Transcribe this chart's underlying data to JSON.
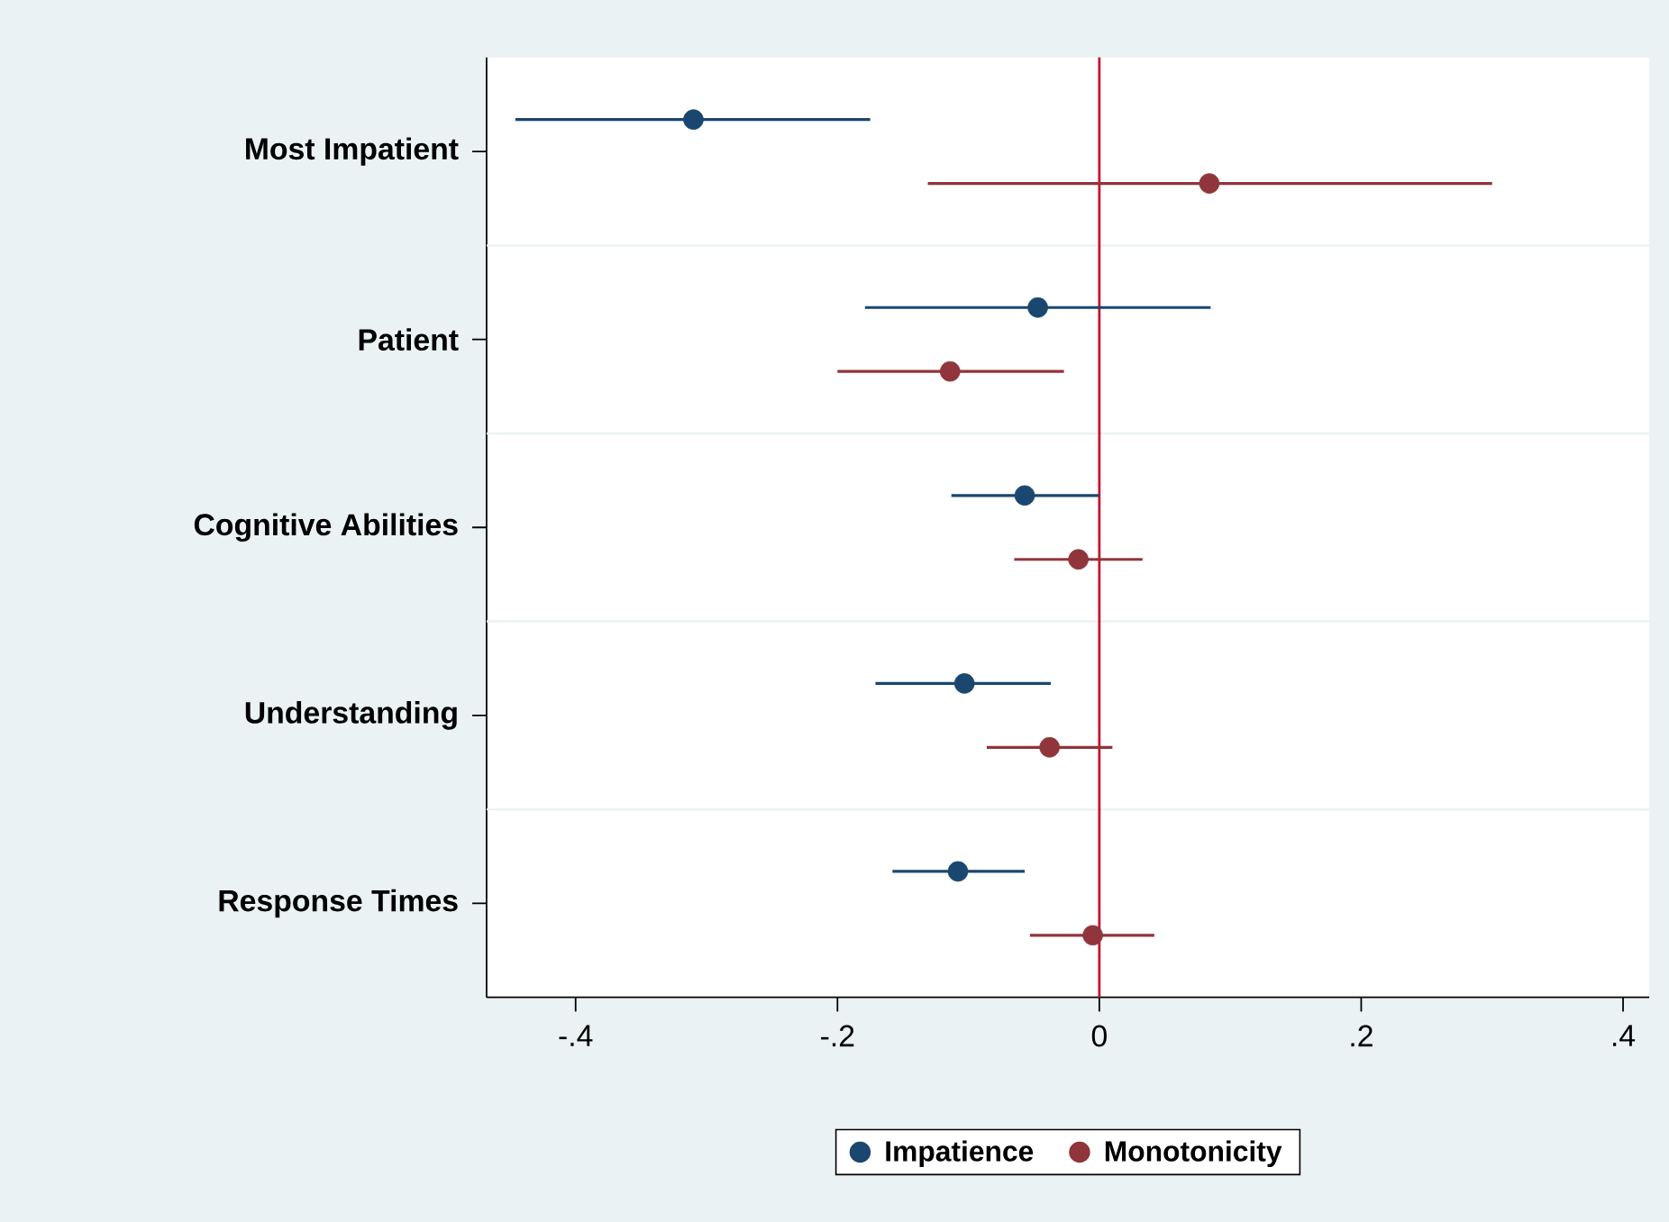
{
  "chart_data": {
    "type": "scatter",
    "orientation": "horizontal",
    "categories": [
      "Most Impatient",
      "Patient",
      "Cognitive Abilities",
      "Understanding",
      "Response Times"
    ],
    "series": [
      {
        "name": "Impatience",
        "color": "#1a476f",
        "values": [
          -0.31,
          -0.047,
          -0.057,
          -0.103,
          -0.108
        ],
        "errors": [
          [
            -0.446,
            -0.175
          ],
          [
            -0.179,
            0.085
          ],
          [
            -0.113,
            0.0
          ],
          [
            -0.171,
            -0.037
          ],
          [
            -0.158,
            -0.057
          ]
        ]
      },
      {
        "name": "Monotonicity",
        "color": "#90353b",
        "values": [
          0.084,
          -0.114,
          -0.016,
          -0.038,
          -0.005
        ],
        "errors": [
          [
            -0.131,
            0.3
          ],
          [
            -0.2,
            -0.027
          ],
          [
            -0.065,
            0.033
          ],
          [
            -0.086,
            0.01
          ],
          [
            -0.053,
            0.042
          ]
        ]
      }
    ],
    "xlim": [
      -0.468,
      0.42
    ],
    "xticks": [
      {
        "value": -0.4,
        "label": "-.4"
      },
      {
        "value": -0.2,
        "label": "-.2"
      },
      0,
      {
        "value": 0.2,
        "label": ".2"
      },
      {
        "value": 0.4,
        "label": ".4"
      }
    ],
    "ref_lines": [
      {
        "axis": "x",
        "value": 0,
        "color": "#c8102e"
      }
    ],
    "grid": "y",
    "legend": "bottom"
  }
}
